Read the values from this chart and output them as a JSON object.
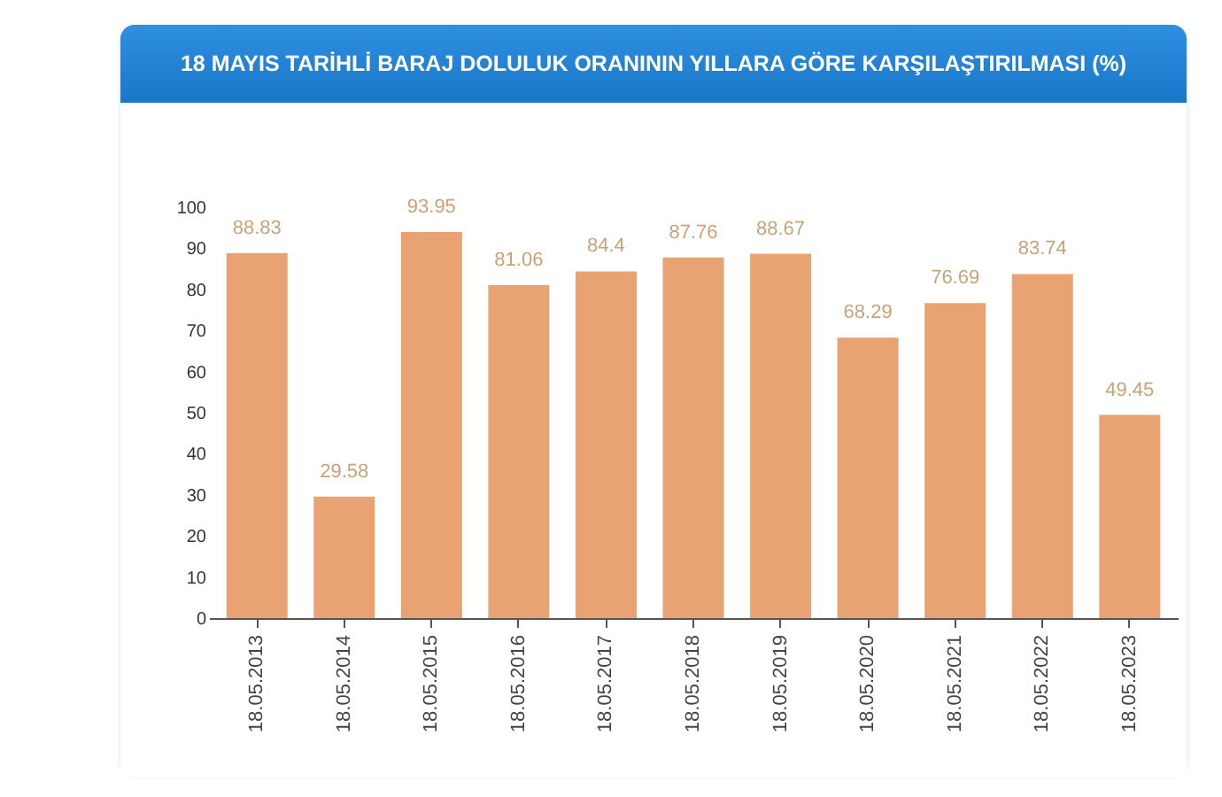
{
  "chart_data": {
    "type": "bar",
    "title": "18 MAYIS TARİHLİ BARAJ DOLULUK ORANININ YILLARA GÖRE KARŞILAŞTIRILMASI (%)",
    "categories": [
      "18.05.2013",
      "18.05.2014",
      "18.05.2015",
      "18.05.2016",
      "18.05.2017",
      "18.05.2018",
      "18.05.2019",
      "18.05.2020",
      "18.05.2021",
      "18.05.2022",
      "18.05.2023"
    ],
    "values": [
      88.83,
      29.58,
      93.95,
      81.06,
      84.4,
      87.76,
      88.67,
      68.29,
      76.69,
      83.74,
      49.45
    ],
    "color": "#e9a271",
    "ylim": [
      0,
      100
    ],
    "yticks": [
      0,
      10,
      20,
      30,
      40,
      50,
      60,
      70,
      80,
      90,
      100
    ],
    "data_labels": true,
    "grid": false
  }
}
